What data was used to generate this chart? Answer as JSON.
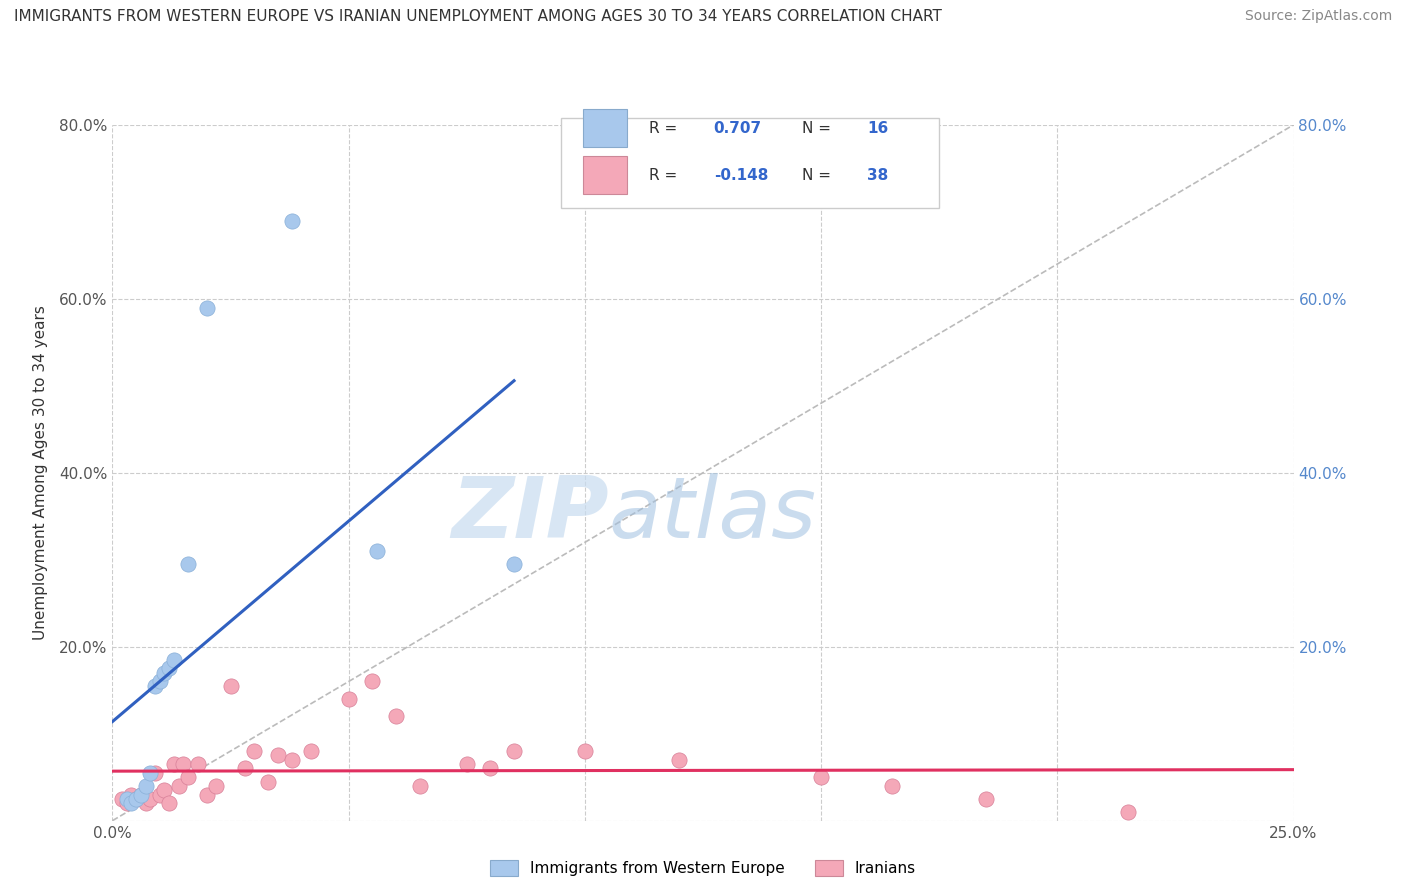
{
  "title": "IMMIGRANTS FROM WESTERN EUROPE VS IRANIAN UNEMPLOYMENT AMONG AGES 30 TO 34 YEARS CORRELATION CHART",
  "source": "Source: ZipAtlas.com",
  "ylabel": "Unemployment Among Ages 30 to 34 years",
  "legend_labels": [
    "Immigrants from Western Europe",
    "Iranians"
  ],
  "xlim": [
    0.0,
    0.25
  ],
  "ylim": [
    0.0,
    0.8
  ],
  "xticks": [
    0.0,
    0.05,
    0.1,
    0.15,
    0.2,
    0.25
  ],
  "xticklabels": [
    "0.0%",
    "",
    "",
    "",
    "",
    "25.0%"
  ],
  "yticks": [
    0.0,
    0.2,
    0.4,
    0.6,
    0.8
  ],
  "yticklabels_left": [
    "",
    "20.0%",
    "40.0%",
    "60.0%",
    "80.0%"
  ],
  "yticklabels_right": [
    "",
    "20.0%",
    "40.0%",
    "60.0%",
    "80.0%"
  ],
  "blue_color": "#A8C8EC",
  "pink_color": "#F4A8B8",
  "blue_line_color": "#3060C0",
  "pink_line_color": "#E03060",
  "diagonal_color": "#BBBBBB",
  "watermark_zip": "ZIP",
  "watermark_atlas": "atlas",
  "blue_r": "0.707",
  "blue_n": "16",
  "pink_r": "-0.148",
  "pink_n": "38",
  "blue_points_x": [
    0.003,
    0.004,
    0.005,
    0.006,
    0.007,
    0.008,
    0.009,
    0.01,
    0.011,
    0.012,
    0.013,
    0.016,
    0.02,
    0.038,
    0.056,
    0.085
  ],
  "blue_points_y": [
    0.025,
    0.02,
    0.025,
    0.03,
    0.04,
    0.055,
    0.155,
    0.16,
    0.17,
    0.175,
    0.185,
    0.295,
    0.59,
    0.69,
    0.31,
    0.295
  ],
  "pink_points_x": [
    0.002,
    0.003,
    0.004,
    0.005,
    0.006,
    0.007,
    0.008,
    0.009,
    0.01,
    0.011,
    0.012,
    0.013,
    0.014,
    0.015,
    0.016,
    0.018,
    0.02,
    0.022,
    0.025,
    0.028,
    0.03,
    0.033,
    0.035,
    0.038,
    0.042,
    0.05,
    0.055,
    0.06,
    0.065,
    0.075,
    0.08,
    0.085,
    0.1,
    0.12,
    0.15,
    0.165,
    0.185,
    0.215
  ],
  "pink_points_y": [
    0.025,
    0.02,
    0.03,
    0.025,
    0.03,
    0.02,
    0.025,
    0.055,
    0.03,
    0.035,
    0.02,
    0.065,
    0.04,
    0.065,
    0.05,
    0.065,
    0.03,
    0.04,
    0.155,
    0.06,
    0.08,
    0.045,
    0.075,
    0.07,
    0.08,
    0.14,
    0.16,
    0.12,
    0.04,
    0.065,
    0.06,
    0.08,
    0.08,
    0.07,
    0.05,
    0.04,
    0.025,
    0.01
  ]
}
